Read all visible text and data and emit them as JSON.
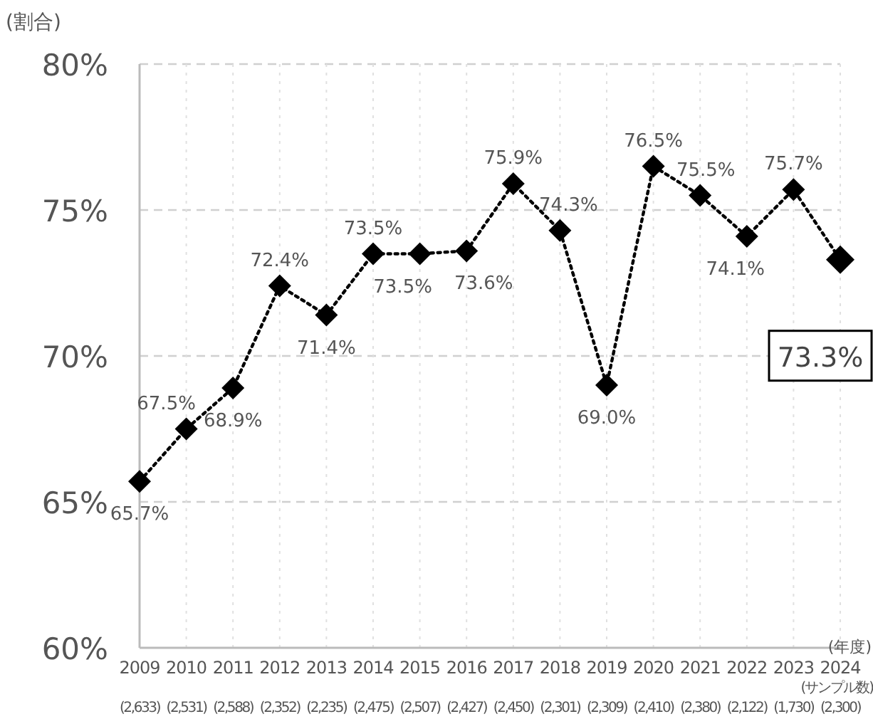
{
  "chart_data": {
    "type": "line",
    "ylabel": "(割合)",
    "xlabel": "(年度)",
    "categories": [
      "2009",
      "2010",
      "2011",
      "2012",
      "2013",
      "2014",
      "2015",
      "2016",
      "2017",
      "2018",
      "2019",
      "2020",
      "2021",
      "2022",
      "2023",
      "2024"
    ],
    "series": [
      {
        "color": "#000000",
        "values": [
          65.7,
          67.5,
          68.9,
          72.4,
          71.4,
          73.5,
          73.5,
          73.6,
          75.9,
          74.3,
          69.0,
          76.5,
          75.5,
          74.1,
          75.7,
          73.3
        ]
      }
    ],
    "value_labels": [
      "65.7%",
      "67.5%",
      "68.9%",
      "72.4%",
      "71.4%",
      "73.5%",
      "73.5%",
      "73.6%",
      "75.9%",
      "74.3%",
      "69.0%",
      "76.5%",
      "75.5%",
      "74.1%",
      "75.7%",
      "73.3%"
    ],
    "ylim": [
      60,
      80
    ],
    "yticks": [
      {
        "value": 60,
        "label": "60%"
      },
      {
        "value": 65,
        "label": "65%"
      },
      {
        "value": 70,
        "label": "70%"
      },
      {
        "value": 75,
        "label": "75%"
      },
      {
        "value": 80,
        "label": "80%"
      }
    ],
    "grid": true,
    "marker": "diamond",
    "line_style": "dotted",
    "annotations": [
      "(サンプル数)",
      "(2,633)",
      "(2,531)",
      "(2,588)",
      "(2,352)",
      "(2,235)",
      "(2,475)",
      "(2,507)",
      "(2,427)",
      "(2,450)",
      "(2,301)",
      "(2,309)",
      "(2,410)",
      "(2,380)",
      "(2,122)",
      "(1,730)",
      "(2,300)"
    ]
  }
}
